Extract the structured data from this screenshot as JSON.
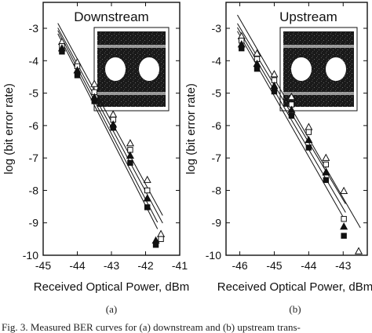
{
  "figure": {
    "caption_fragment": "Fig. 3.   Measured BER curves for (a) downstream and (b) upstream trans-",
    "ylabel": "log (bit error rate)",
    "xlabel": "Received Optical Power, dBm"
  },
  "chart_data": [
    {
      "type": "line",
      "panel_label": "(a)",
      "title": "Downstream",
      "xlabel": "Received Optical Power, dBm",
      "ylabel": "log (bit error rate)",
      "xlim": [
        -45,
        -41
      ],
      "ylim": [
        -10,
        -2.2
      ],
      "xticks": [
        -45,
        -44,
        -43,
        -42,
        -41
      ],
      "yticks": [
        -3,
        -4,
        -5,
        -6,
        -7,
        -8,
        -9,
        -10
      ],
      "xtick_labels": [
        "-45",
        "-44",
        "-43",
        "-42",
        "-41"
      ],
      "ytick_labels": [
        "-3",
        "-4",
        "-5",
        "-6",
        "-7",
        "-8",
        "-9",
        "-10"
      ],
      "grid": false,
      "inset": "eye diagram",
      "series": [
        {
          "marker": "triangle-open",
          "x": [
            -44.45,
            -44.0,
            -43.5,
            -42.95,
            -42.45,
            -41.95,
            -41.55
          ],
          "y": [
            -3.42,
            -4.05,
            -4.72,
            -5.66,
            -6.55,
            -7.68,
            -9.35
          ]
        },
        {
          "marker": "square-open",
          "x": [
            -44.45,
            -44.0,
            -43.5,
            -42.95,
            -42.45,
            -41.95,
            -41.55
          ],
          "y": [
            -3.55,
            -4.17,
            -4.97,
            -5.82,
            -6.75,
            -8.0,
            -9.5
          ]
        },
        {
          "marker": "triangle-filled",
          "x": [
            -44.45,
            -44.0,
            -43.5,
            -42.95,
            -42.45,
            -41.95,
            -41.7
          ],
          "y": [
            -3.62,
            -4.3,
            -5.13,
            -5.97,
            -6.93,
            -8.25,
            -9.55
          ]
        },
        {
          "marker": "square-filled",
          "x": [
            -44.45,
            -44.0,
            -43.5,
            -42.95,
            -42.45,
            -41.95,
            -41.7
          ],
          "y": [
            -3.72,
            -4.45,
            -5.25,
            -6.07,
            -7.15,
            -8.52,
            -9.68
          ]
        }
      ]
    },
    {
      "type": "line",
      "panel_label": "(b)",
      "title": "Upstream",
      "xlabel": "Received Optical Power, dBm",
      "ylabel": "log (bit error rate)",
      "xlim": [
        -46.4,
        -42.3
      ],
      "ylim": [
        -10,
        -2.2
      ],
      "xticks": [
        -46,
        -45,
        -44,
        -43
      ],
      "yticks": [
        -3,
        -4,
        -5,
        -6,
        -7,
        -8,
        -9,
        -10
      ],
      "xtick_labels": [
        "-46",
        "-45",
        "-44",
        "-43"
      ],
      "ytick_labels": [
        "-3",
        "-4",
        "-5",
        "-6",
        "-7",
        "-8",
        "-9",
        "-10"
      ],
      "grid": false,
      "inset": "eye diagram",
      "series": [
        {
          "marker": "triangle-open",
          "x": [
            -45.95,
            -45.5,
            -45.0,
            -44.5,
            -44.0,
            -43.5,
            -42.98,
            -42.55
          ],
          "y": [
            -3.25,
            -3.78,
            -4.42,
            -5.12,
            -6.05,
            -7.0,
            -8.02,
            -9.88
          ]
        },
        {
          "marker": "square-open",
          "x": [
            -45.95,
            -45.5,
            -45.0,
            -44.5,
            -44.0,
            -43.5,
            -42.98
          ],
          "y": [
            -3.38,
            -3.95,
            -4.6,
            -5.35,
            -6.2,
            -7.2,
            -8.88
          ]
        },
        {
          "marker": "triangle-filled",
          "x": [
            -45.95,
            -45.5,
            -45.0,
            -44.5,
            -44.0,
            -43.5,
            -42.98
          ],
          "y": [
            -3.5,
            -4.1,
            -4.78,
            -5.52,
            -6.45,
            -7.45,
            -9.12
          ]
        },
        {
          "marker": "square-filled",
          "x": [
            -45.95,
            -45.5,
            -45.0,
            -44.5,
            -44.0,
            -43.5,
            -42.98
          ],
          "y": [
            -3.62,
            -4.25,
            -4.95,
            -5.7,
            -6.68,
            -7.68,
            -9.4
          ]
        }
      ]
    }
  ]
}
